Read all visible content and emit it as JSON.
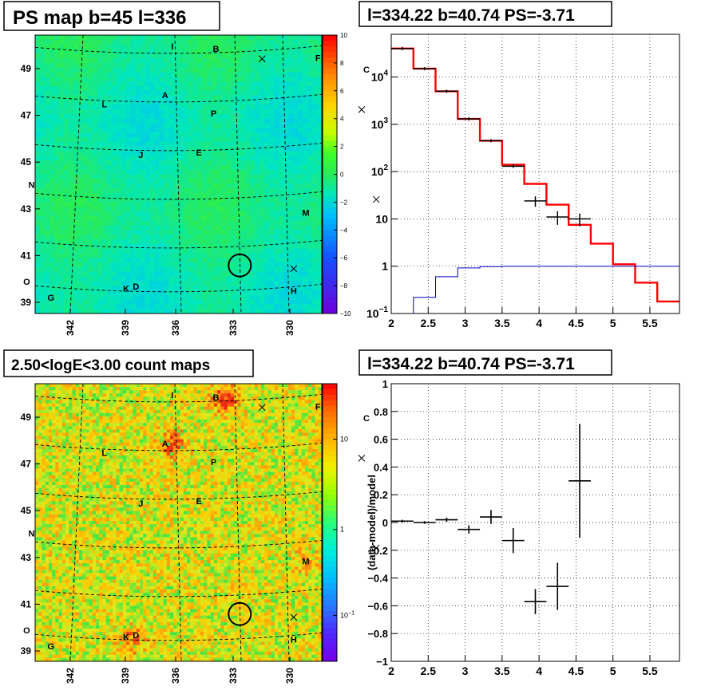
{
  "chart_data": [
    {
      "type": "heatmap",
      "title": "PS map b=45 l=336",
      "colorbar": {
        "ticks": [
          "10",
          "8",
          "6",
          "4",
          "2",
          "0",
          "−2",
          "−4",
          "−6",
          "−8",
          "−10"
        ],
        "range": [
          -10,
          10
        ]
      },
      "xticks": [
        "342",
        "339",
        "336",
        "333",
        "330"
      ],
      "yticks": [
        "49",
        "47",
        "45",
        "43",
        "41",
        "39"
      ],
      "base_value": -1,
      "source_labels": [
        {
          "text": "I",
          "l": 337.0,
          "b": 50.1
        },
        {
          "text": "B",
          "l": 335.2,
          "b": 50.0
        },
        {
          "text": "F",
          "l": 331.0,
          "b": 49.6
        },
        {
          "text": "C",
          "l": 329.0,
          "b": 49.1
        },
        {
          "text": "L",
          "l": 339.8,
          "b": 47.6
        },
        {
          "text": "A",
          "l": 337.3,
          "b": 48.0
        },
        {
          "text": "P",
          "l": 335.3,
          "b": 47.2
        },
        {
          "text": "J",
          "l": 338.3,
          "b": 45.4
        },
        {
          "text": "E",
          "l": 335.9,
          "b": 45.5
        },
        {
          "text": "N",
          "l": 342.8,
          "b": 44.1
        },
        {
          "text": "M",
          "l": 331.5,
          "b": 42.9
        },
        {
          "text": "O",
          "l": 343.0,
          "b": 39.9
        },
        {
          "text": "G",
          "l": 342.0,
          "b": 39.2
        },
        {
          "text": "K",
          "l": 338.9,
          "b": 39.6
        },
        {
          "text": "D",
          "l": 338.5,
          "b": 39.7
        },
        {
          "text": "H",
          "l": 332.0,
          "b": 39.5
        }
      ],
      "markers": [
        {
          "type": "x",
          "l": 333.3,
          "b": 49.7
        },
        {
          "type": "x",
          "l": 329.2,
          "b": 47.5
        },
        {
          "type": "x",
          "l": 328.6,
          "b": 43.6
        },
        {
          "type": "x",
          "l": 332.0,
          "b": 40.6
        }
      ],
      "roi_circle": {
        "l": 334.22,
        "b": 40.74
      }
    },
    {
      "type": "line",
      "title": "l=334.22 b=40.74 PS=-3.71",
      "xlim": [
        2,
        5.9
      ],
      "ylim": [
        0.1,
        80000
      ],
      "ylog": true,
      "xticks": [
        "2",
        "2.5",
        "3",
        "3.5",
        "4",
        "4.5",
        "5",
        "5.5"
      ],
      "yticks": [
        {
          "v": 0.1,
          "base": "10",
          "exp": "−1"
        },
        {
          "v": 1,
          "label": "1"
        },
        {
          "v": 10,
          "label": "10"
        },
        {
          "v": 100,
          "base": "10",
          "exp": "2"
        },
        {
          "v": 1000,
          "base": "10",
          "exp": "3"
        },
        {
          "v": 10000,
          "base": "10",
          "exp": "4"
        }
      ],
      "grid": true,
      "bin_edges": [
        2.0,
        2.3,
        2.6,
        2.9,
        3.2,
        3.5,
        3.8,
        4.1,
        4.4,
        4.7,
        5.0,
        5.3,
        5.6,
        5.9
      ],
      "series": [
        {
          "color": "#ff0000",
          "values": [
            40000,
            15000,
            5000,
            1300,
            450,
            140,
            55,
            20,
            7.5,
            3,
            1.1,
            0.45,
            0.18
          ]
        },
        {
          "color": "#0000cc",
          "values": [
            0.08,
            0.22,
            0.6,
            0.92,
            0.98,
            1.0,
            1.0,
            1.0,
            1.0,
            1.0,
            1.0,
            1.0,
            1.0
          ]
        }
      ],
      "points": [
        {
          "x": 2.15,
          "y": 40000
        },
        {
          "x": 2.45,
          "y": 15000
        },
        {
          "x": 2.75,
          "y": 5000
        },
        {
          "x": 3.05,
          "y": 1300
        },
        {
          "x": 3.35,
          "y": 450
        },
        {
          "x": 3.65,
          "y": 130,
          "xerr": 0.15
        },
        {
          "x": 3.95,
          "y": 24,
          "xerr": 0.15,
          "yerr": 6
        },
        {
          "x": 4.25,
          "y": 11,
          "xerr": 0.15,
          "yerr": 3.5
        },
        {
          "x": 4.55,
          "y": 10,
          "xerr": 0.15,
          "yerr": 3
        }
      ]
    },
    {
      "type": "heatmap",
      "title": "2.50<logE<3.00 count maps",
      "colorbar": {
        "ticks": [
          {
            "label": "10",
            "frac": 0.2
          },
          {
            "label": "1",
            "frac": 0.525
          },
          {
            "base": "10",
            "exp": "−1",
            "frac": 0.835
          }
        ]
      },
      "xticks": [
        "342",
        "339",
        "336",
        "333",
        "330"
      ],
      "yticks": [
        "49",
        "47",
        "45",
        "43",
        "41",
        "39"
      ],
      "hotspots": [
        {
          "l": 337.0,
          "b": 48.1,
          "level": 0.9
        },
        {
          "l": 334.8,
          "b": 50.1,
          "level": 0.95
        },
        {
          "l": 338.7,
          "b": 39.6,
          "level": 0.6
        },
        {
          "l": 331.5,
          "b": 43.0,
          "level": 0.35
        }
      ]
    },
    {
      "type": "scatter",
      "title": "l=334.22 b=40.74 PS=-3.71",
      "ylabel": "(data-model)/model",
      "xlim": [
        2,
        5.9
      ],
      "ylim": [
        -1,
        1
      ],
      "grid": true,
      "xticks": [
        "2",
        "2.5",
        "3",
        "3.5",
        "4",
        "4.5",
        "5",
        "5.5"
      ],
      "yticks": [
        {
          "v": 1,
          "label": "1"
        },
        {
          "v": 0.8,
          "label": "0.8"
        },
        {
          "v": 0.6,
          "label": "0.6"
        },
        {
          "v": 0.4,
          "label": "0.4"
        },
        {
          "v": 0.2,
          "label": "0.2"
        },
        {
          "v": 0,
          "label": "0"
        },
        {
          "v": -0.2,
          "label": "−0.2"
        },
        {
          "v": -0.4,
          "label": "−0.4"
        },
        {
          "v": -0.6,
          "label": "−0.6"
        },
        {
          "v": -0.8,
          "label": "−0.8"
        },
        {
          "v": -1,
          "label": "−1"
        }
      ],
      "points": [
        {
          "x": 2.15,
          "y": 0.01,
          "xerr": 0.15,
          "yerr": 0.01
        },
        {
          "x": 2.45,
          "y": 0.0,
          "xerr": 0.15,
          "yerr": 0.01
        },
        {
          "x": 2.75,
          "y": 0.02,
          "xerr": 0.15,
          "yerr": 0.015
        },
        {
          "x": 3.05,
          "y": -0.05,
          "xerr": 0.15,
          "yerr": 0.03
        },
        {
          "x": 3.35,
          "y": 0.04,
          "xerr": 0.15,
          "yerr": 0.05
        },
        {
          "x": 3.65,
          "y": -0.13,
          "xerr": 0.15,
          "yerr": 0.09
        },
        {
          "x": 3.95,
          "y": -0.57,
          "xerr": 0.15,
          "yerr": 0.09
        },
        {
          "x": 4.25,
          "y": -0.46,
          "xerr": 0.15,
          "yerr": 0.17
        },
        {
          "x": 4.55,
          "y": 0.3,
          "xerr": 0.15,
          "yerr": 0.41
        }
      ]
    }
  ]
}
